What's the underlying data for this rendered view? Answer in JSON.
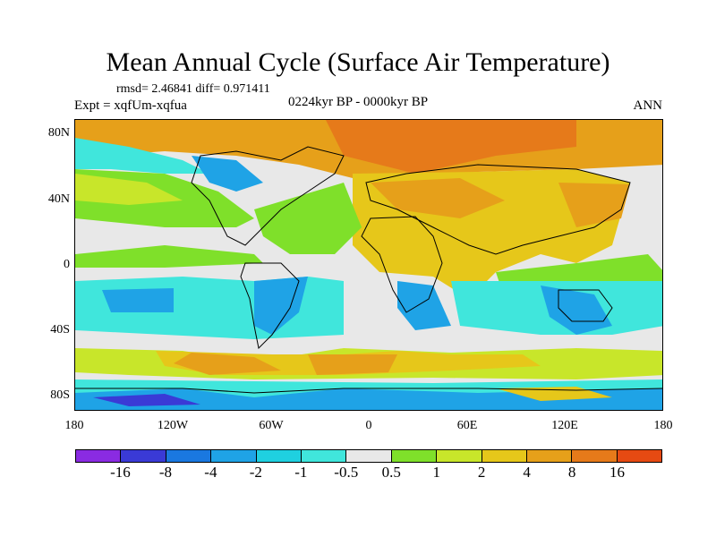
{
  "title": "Mean Annual Cycle (Surface Air Temperature)",
  "stats": "rmsd= 2.46841 diff= 0.971411",
  "experiment": "Expt = xqfUm-xqfua",
  "period": "0224kyr BP - 0000kyr BP",
  "season": "ANN",
  "lat_labels": [
    "80N",
    "40N",
    "0",
    "40S",
    "80S"
  ],
  "lon_labels": [
    "180",
    "120W",
    "60W",
    "0",
    "60E",
    "120E",
    "180"
  ],
  "colorbar": {
    "colors": [
      "#8a2be2",
      "#3a3ad6",
      "#1a78e0",
      "#1fa3e6",
      "#1fd0e0",
      "#40e6dc",
      "#e8e8e8",
      "#7fe02a",
      "#c8e62a",
      "#e6c71a",
      "#e6a01a",
      "#e67a1a",
      "#e64a12"
    ],
    "labels": [
      "-16",
      "-8",
      "-4",
      "-2",
      "-1",
      "-0.5",
      "0.5",
      "1",
      "2",
      "4",
      "8",
      "16"
    ]
  }
}
